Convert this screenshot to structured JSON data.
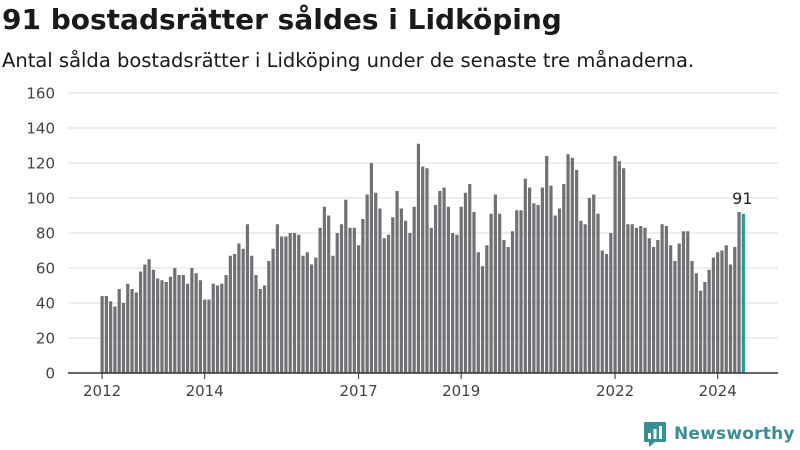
{
  "title": "91 bostadsrätter såldes i Lidköping",
  "subtitle": "Antal sålda bostadsrätter i Lidköping under de senaste tre månaderna.",
  "brand": {
    "name": "Newsworthy",
    "icon": "newsworthy-chart-logo-icon"
  },
  "colors": {
    "bar": "#717074",
    "highlight": "#1f9e94",
    "grid": "#dddddd",
    "axis": "#333333"
  },
  "chart_data": {
    "type": "bar",
    "title": "91 bostadsrätter såldes i Lidköping",
    "subtitle": "Antal sålda bostadsrätter i Lidköping under de senaste tre månaderna.",
    "xlabel": "",
    "ylabel": "",
    "ylim": [
      0,
      160
    ],
    "yticks": [
      0,
      20,
      40,
      60,
      80,
      100,
      120,
      140,
      160
    ],
    "xtick_labels": [
      "2012",
      "2014",
      "2017",
      "2019",
      "2022",
      "2024"
    ],
    "grid": true,
    "x_start": "2012-01",
    "x_end": "2024-11",
    "last_value_label": "91",
    "series": [
      {
        "values": [
          44,
          44,
          41,
          38,
          48,
          40,
          51,
          48,
          46,
          58,
          62,
          65,
          59,
          54,
          53,
          52,
          55,
          60,
          56,
          56,
          51,
          60,
          57,
          53,
          42,
          42,
          51,
          50,
          51,
          56,
          67,
          68,
          74,
          71,
          85,
          67,
          56,
          48,
          50,
          64,
          71,
          85,
          78,
          78,
          80,
          80,
          79,
          67,
          69,
          62,
          66,
          83,
          95,
          90,
          67,
          80,
          85,
          99,
          83,
          83,
          73,
          88,
          102,
          120,
          103,
          94,
          77,
          79,
          89,
          104,
          94,
          87,
          80,
          95,
          131,
          118,
          117,
          83,
          96,
          104,
          106,
          95,
          80,
          79,
          95,
          103,
          108,
          92,
          69,
          61,
          73,
          91,
          102,
          91,
          76,
          72,
          81,
          93,
          93,
          111,
          106,
          97,
          96,
          106,
          124,
          107,
          90,
          94,
          108,
          125,
          123,
          116,
          87,
          85,
          100,
          102,
          91,
          70,
          68,
          80,
          124,
          121,
          117,
          85,
          85,
          83,
          84,
          83,
          77,
          72,
          76,
          85,
          84,
          73,
          64,
          74,
          81,
          81,
          64,
          57,
          47,
          52,
          59,
          66,
          69,
          70,
          73,
          62,
          72,
          92,
          91
        ]
      }
    ]
  }
}
